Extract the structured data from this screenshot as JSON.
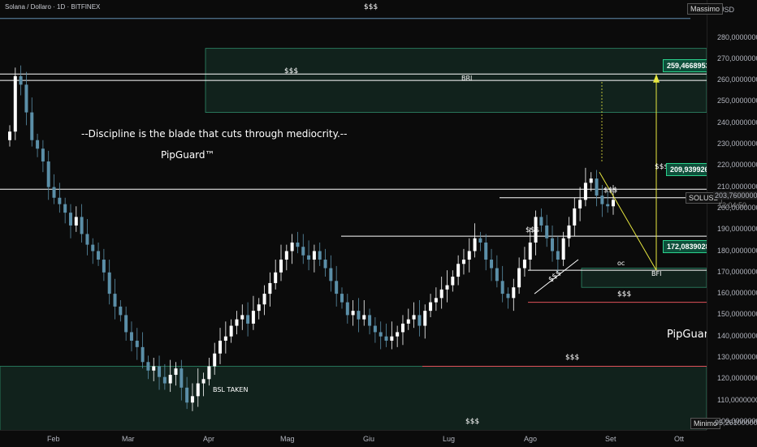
{
  "header": {
    "symbol_line": "Solana / Dollaro · 1D · BITFINEX"
  },
  "price_axis": {
    "currency": "USD",
    "max_tag": "Massimo",
    "min_tag": "Minimo",
    "min_value": "95,26100000",
    "last_symbol": "SOLUSD",
    "last_price": "203,76000000",
    "countdown": "12:04:50",
    "ticks": [
      "280,00000000",
      "270,00000000",
      "260,00000000",
      "250,00000000",
      "240,00000000",
      "230,00000000",
      "220,00000000",
      "210,00000000",
      "200,00000000",
      "190,00000000",
      "180,00000000",
      "170,00000000",
      "160,00000000",
      "150,00000000",
      "140,00000000",
      "130,00000000",
      "120,00000000",
      "110,00000000",
      "100,00000000"
    ]
  },
  "time_axis": {
    "months": [
      "Feb",
      "Mar",
      "Apr",
      "Mag",
      "Giu",
      "Lug",
      "Ago",
      "Set",
      "Ott"
    ]
  },
  "annotations": {
    "quote": "--Discipline is the blade that cuts through mediocrity.--",
    "brand_top": "PipGuard™",
    "brand_bottom": "PipGuard™",
    "bri": "BRI",
    "bfi": "BFI",
    "bsl_taken": "BSL TAKEN",
    "liquidity": "$$$",
    "oc": "oc",
    "targets": {
      "high": "259,46689532",
      "mid": "209,93992618",
      "low": "172,08390286"
    }
  },
  "chart_data": {
    "type": "candlestick",
    "title": "Solana / Dollaro · 1D · BITFINEX",
    "ylim": [
      92,
      290
    ],
    "colors": {
      "up": "#ffffff",
      "down": "#5b8fa8",
      "zone": "#2e8b6a",
      "red_line": "#e0525a",
      "target": "#e8e840"
    },
    "levels": {
      "max_line": 289,
      "bri_high": 263,
      "bri_low": 260,
      "mid_high": 209,
      "mid_low": 205,
      "swing_top": 187,
      "oc_level": 171,
      "red_mid": 156,
      "red_low": 126,
      "bottom_red": 95.3
    },
    "zones": [
      {
        "name": "BRI",
        "top": 275,
        "bottom": 245
      },
      {
        "name": "BFI",
        "top": 172,
        "bottom": 163
      },
      {
        "name": "Demand",
        "top": 126,
        "bottom": 96
      }
    ],
    "close_path": [
      236,
      262,
      258,
      245,
      232,
      228,
      222,
      210,
      205,
      202,
      198,
      192,
      196,
      188,
      183,
      180,
      176,
      170,
      160,
      154,
      150,
      142,
      138,
      135,
      128,
      124,
      126,
      121,
      118,
      122,
      125,
      116,
      109,
      112,
      118,
      120,
      126,
      132,
      138,
      140,
      145,
      148,
      150,
      146,
      152,
      155,
      160,
      165,
      170,
      176,
      180,
      184,
      182,
      178,
      176,
      180,
      176,
      172,
      166,
      160,
      156,
      150,
      152,
      148,
      150,
      145,
      142,
      140,
      138,
      140,
      142,
      146,
      148,
      150,
      145,
      152,
      156,
      158,
      162,
      164,
      168,
      174,
      176,
      180,
      186,
      184,
      176,
      172,
      166,
      160,
      158,
      163,
      172,
      176,
      184,
      196,
      192,
      186,
      180,
      176,
      186,
      192,
      200,
      204,
      212,
      214,
      206,
      202,
      201,
      204
    ]
  }
}
